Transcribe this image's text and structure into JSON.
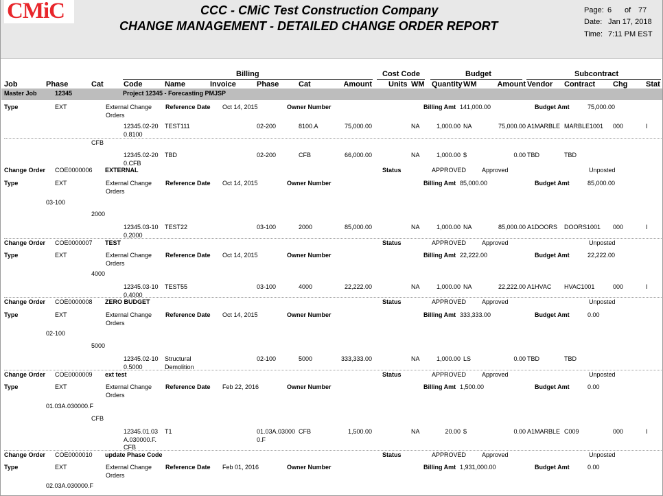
{
  "header": {
    "logo": "CMiC",
    "company": "CCC - CMiC Test Construction Company",
    "report_title": "CHANGE MANAGEMENT - DETAILED CHANGE ORDER REPORT",
    "page_label": "Page:",
    "page_num": "6",
    "page_of": "of",
    "page_total": "77",
    "date_label": "Date:",
    "date_value": "Jan 17, 2018",
    "time_label": "Time:",
    "time_value": "7:11 PM EST"
  },
  "groups": {
    "billing": "Billing",
    "cost_code": "Cost Code",
    "budget": "Budget",
    "subcontract": "Subcontract"
  },
  "columns": {
    "job": "Job",
    "phase": "Phase",
    "cat": "Cat",
    "code": "Code",
    "name": "Name",
    "invoice": "Invoice",
    "b_phase": "Phase",
    "b_cat": "Cat",
    "amount": "Amount",
    "units": "Units",
    "wm": "WM",
    "quantity": "Quantity",
    "bud_wm": "WM",
    "bud_amount": "Amount",
    "vendor": "Vendor",
    "contract": "Contract",
    "chg": "Chg",
    "stat": "Stat"
  },
  "master_job": {
    "label": "Master Job",
    "job": "12345",
    "project": "Project 12345 - Forecasting PMJSP"
  },
  "labels": {
    "type": "Type",
    "change_order": "Change Order",
    "ref_date": "Reference Date",
    "owner_number": "Owner Number",
    "status": "Status",
    "billing_amt": "Billing Amt",
    "budget_amt": "Budget Amt"
  },
  "blocks": [
    {
      "type_value": "EXT",
      "type_desc": "External Change Orders",
      "ref_date": "Oct 14, 2015",
      "billing_amt": "141,000.00",
      "budget_amt": "75,000.00",
      "lines": [
        {
          "code": "12345.02-200.8100",
          "name": "TEST111",
          "phase": "02-200",
          "cat": "8100.A",
          "amount": "75,000.00",
          "wm": "NA",
          "qty": "1,000.00",
          "bwm": "NA",
          "bamt": "75,000.00",
          "vendor": "A1MARBLE",
          "contract": "MARBLE1001",
          "chg": "000",
          "stat": "I"
        },
        {
          "cat_row": "CFB",
          "code": "12345.02-200.CFB",
          "name": "TBD",
          "phase": "02-200",
          "cat": "CFB",
          "amount": "66,000.00",
          "wm": "NA",
          "qty": "1,000.00",
          "bwm": "$",
          "bamt": "0.00",
          "vendor": "TBD",
          "contract": "TBD",
          "chg": "",
          "stat": ""
        }
      ]
    },
    {
      "co_number": "COE0000006",
      "co_title": "EXTERNAL",
      "status": "APPROVED",
      "status2": "Approved",
      "posting": "Unposted",
      "type_value": "EXT",
      "type_desc": "External Change Orders",
      "ref_date": "Oct 14, 2015",
      "billing_amt": "85,000.00",
      "budget_amt": "85,000.00",
      "phase_row": "03-100",
      "cat_row": "2000",
      "lines": [
        {
          "code": "12345.03-100.2000",
          "name": "TEST22",
          "phase": "03-100",
          "cat": "2000",
          "amount": "85,000.00",
          "wm": "NA",
          "qty": "1,000.00",
          "bwm": "NA",
          "bamt": "85,000.00",
          "vendor": "A1DOORS",
          "contract": "DOORS1001",
          "chg": "000",
          "stat": "I"
        }
      ]
    },
    {
      "co_number": "COE0000007",
      "co_title": "TEST",
      "status": "APPROVED",
      "status2": "Approved",
      "posting": "Unposted",
      "type_value": "EXT",
      "type_desc": "External Change Orders",
      "ref_date": "Oct 14, 2015",
      "billing_amt": "22,222.00",
      "budget_amt": "22,222.00",
      "cat_row": "4000",
      "lines": [
        {
          "code": "12345.03-100.4000",
          "name": "TEST55",
          "phase": "03-100",
          "cat": "4000",
          "amount": "22,222.00",
          "wm": "NA",
          "qty": "1,000.00",
          "bwm": "NA",
          "bamt": "22,222.00",
          "vendor": "A1HVAC",
          "contract": "HVAC1001",
          "chg": "000",
          "stat": "I"
        }
      ]
    },
    {
      "co_number": "COE0000008",
      "co_title": "ZERO BUDGET",
      "status": "APPROVED",
      "status2": "Approved",
      "posting": "Unposted",
      "type_value": "EXT",
      "type_desc": "External Change Orders",
      "ref_date": "Oct 14, 2015",
      "billing_amt": "333,333.00",
      "budget_amt": "0.00",
      "phase_row": "02-100",
      "cat_row": "5000",
      "lines": [
        {
          "code": "12345.02-100.5000",
          "name": "Structural Demolition",
          "phase": "02-100",
          "cat": "5000",
          "amount": "333,333.00",
          "wm": "NA",
          "qty": "1,000.00",
          "bwm": "LS",
          "bamt": "0.00",
          "vendor": "TBD",
          "contract": "TBD",
          "chg": "",
          "stat": ""
        }
      ]
    },
    {
      "co_number": "COE0000009",
      "co_title": "ext test",
      "status": "APPROVED",
      "status2": "Approved",
      "posting": "Unposted",
      "type_value": "EXT",
      "type_desc": "External Change Orders",
      "ref_date": "Feb 22, 2016",
      "billing_amt": "1,500.00",
      "budget_amt": "0.00",
      "phase_row": "01.03A.030000.F",
      "cat_row": "CFB",
      "lines": [
        {
          "code": "12345.01.03A.030000.F.CFB",
          "name": "T1",
          "phase": "01.03A.030000.F",
          "cat": "CFB",
          "amount": "1,500.00",
          "wm": "NA",
          "qty": "20.00",
          "bwm": "$",
          "bamt": "0.00",
          "vendor": "A1MARBLE",
          "contract": "C009",
          "chg": "000",
          "stat": "I"
        }
      ]
    },
    {
      "co_number": "COE0000010",
      "co_title": "update Phase Code",
      "status": "APPROVED",
      "status2": "Approved",
      "posting": "Unposted",
      "type_value": "EXT",
      "type_desc": "External Change Orders",
      "ref_date": "Feb 01, 2016",
      "billing_amt": "1,931,000.00",
      "budget_amt": "0.00",
      "phase_row": "02.03A.030000.F"
    }
  ]
}
